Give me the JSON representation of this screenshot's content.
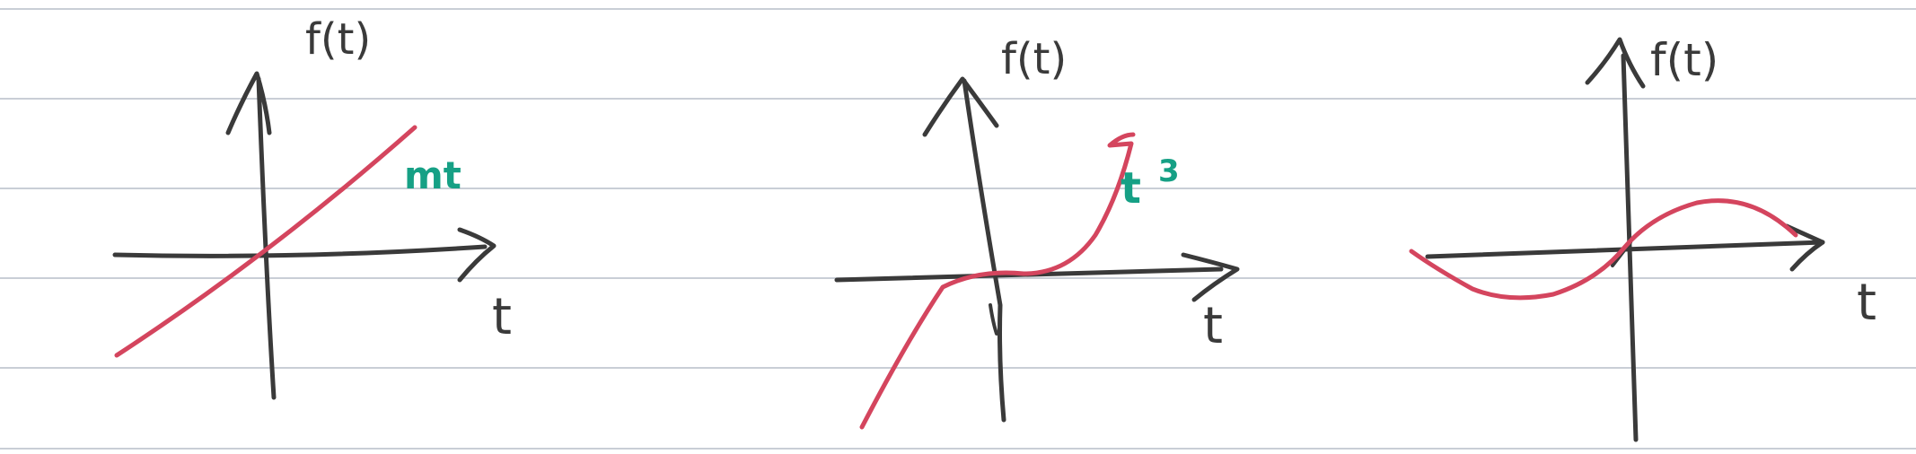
{
  "colors": {
    "paper": "#ffffff",
    "rule_line": "#c9ced6",
    "ink": "#3a3a3a",
    "curve": "#d4455e",
    "annotation": "#16a085"
  },
  "graphs": [
    {
      "y_label": "f(t)",
      "x_label": "t",
      "curve_label": "mt",
      "curve_kind": "linear"
    },
    {
      "y_label": "f(t)",
      "x_label": "t",
      "curve_label": "t",
      "curve_label_superscript": "3",
      "curve_kind": "cubic"
    },
    {
      "y_label": "f(t)",
      "x_label": "t",
      "curve_label": "",
      "curve_kind": "sine"
    }
  ]
}
